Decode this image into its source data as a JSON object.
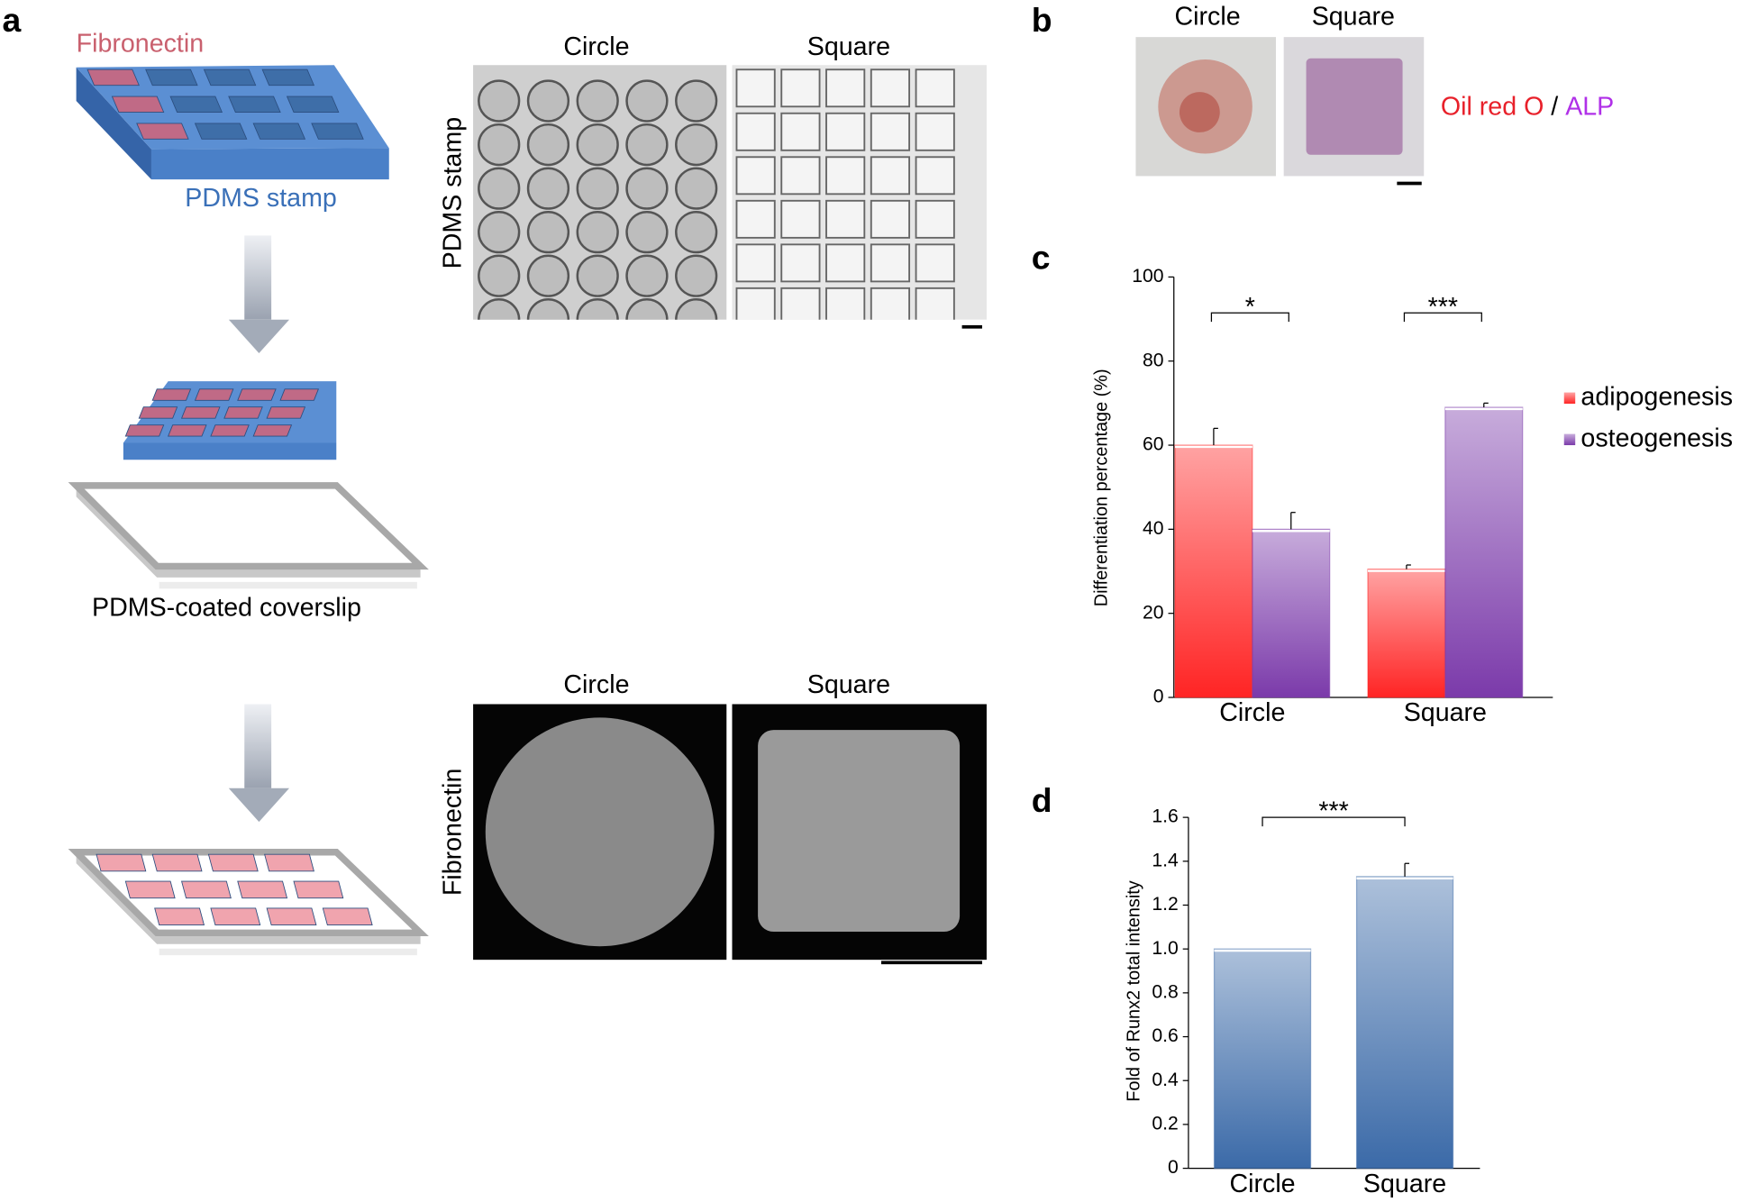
{
  "panel_labels": [
    "a",
    "b",
    "c",
    "d"
  ],
  "panel_a": {
    "fibronectin_label": "Fibronectin",
    "stamp_label": "PDMS stamp",
    "coverslip_label": "PDMS-coated coverslip",
    "columns": [
      "Circle",
      "Square"
    ],
    "row_labels": [
      "PDMS stamp",
      "Fibronectin"
    ]
  },
  "panel_b": {
    "columns": [
      "Circle",
      "Square"
    ],
    "stain": [
      "Oil red O",
      "/",
      "ALP"
    ]
  },
  "chart_data": [
    {
      "type": "bar",
      "categories": [
        "Circle",
        "Square"
      ],
      "series": [
        {
          "name": "adipogenesis",
          "color": "#ff2424",
          "values": [
            60,
            30.5
          ],
          "errors": [
            4,
            1
          ]
        },
        {
          "name": "osteogenesis",
          "color": "#7b3aaa",
          "values": [
            40,
            69
          ],
          "errors": [
            4,
            1
          ]
        }
      ],
      "ylabel": "Differentiation percentage (%)",
      "ylim": [
        0,
        100
      ],
      "yticks": [
        0,
        20,
        40,
        60,
        80,
        100
      ],
      "annotations": [
        "*",
        "***"
      ]
    },
    {
      "type": "bar",
      "categories": [
        "Circle",
        "Square"
      ],
      "series": [
        {
          "color": "#3b6aa8",
          "values": [
            1,
            1.33
          ],
          "errors": [
            0,
            0.06
          ]
        }
      ],
      "ylabel": "Fold of Runx2 total intensity",
      "ylim": [
        0,
        1.6
      ],
      "yticks": [
        0,
        0.2,
        0.4,
        0.6,
        0.8,
        {
          "value": 1,
          "label": "1.0"
        },
        1.2,
        1.4,
        1.6
      ],
      "annotations": [
        "***"
      ]
    }
  ]
}
